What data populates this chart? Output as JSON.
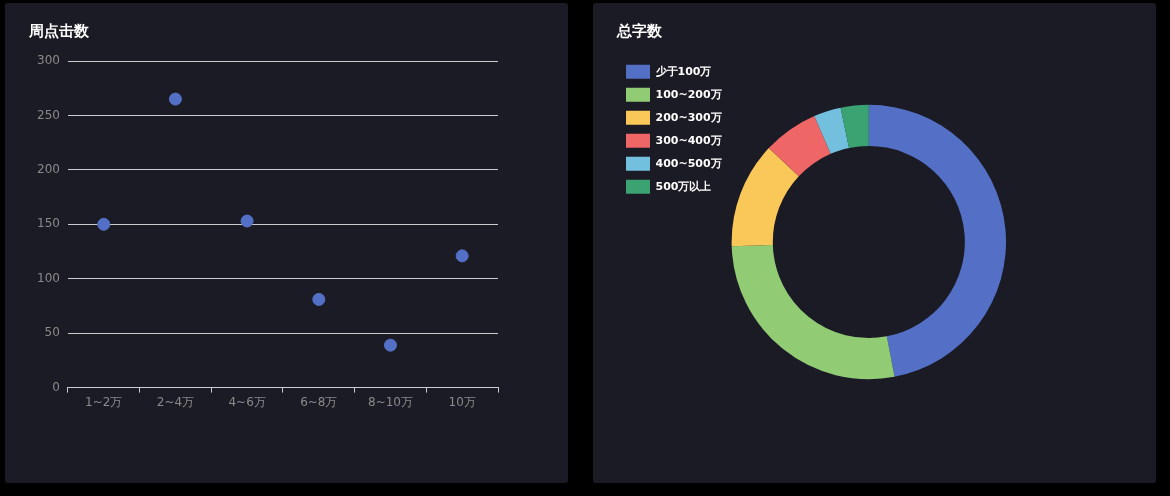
{
  "chart_data": [
    {
      "type": "scatter",
      "title": "周点击数",
      "categories": [
        "1~2万",
        "2~4万",
        "4~6万",
        "6~8万",
        "8~10万",
        "10万"
      ],
      "series": [
        {
          "color": "#5470c6",
          "values": [
            150,
            265,
            153,
            81,
            39,
            121
          ]
        }
      ],
      "ylim": [
        0,
        300
      ],
      "yticks": [
        0,
        50,
        100,
        150,
        200,
        250,
        300
      ],
      "grid": "y",
      "legend": false,
      "marker": "circle"
    },
    {
      "type": "donut",
      "title": "总字数",
      "categories": [
        "少于100万",
        "100~200万",
        "200~300万",
        "300~400万",
        "400~500万",
        "500万以上"
      ],
      "values": [
        47,
        27.5,
        12.5,
        6.5,
        3.2,
        3.3
      ],
      "colors": [
        "#5470c6",
        "#91cc75",
        "#fac858",
        "#ee6666",
        "#73c0de",
        "#3ba272"
      ],
      "legend": "top left"
    }
  ]
}
